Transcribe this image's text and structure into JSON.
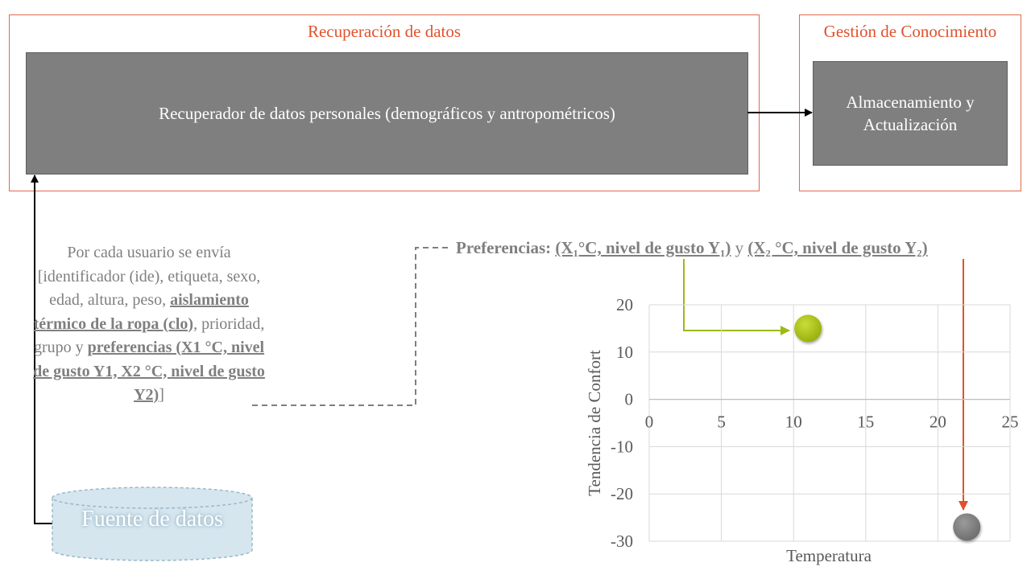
{
  "panels": {
    "retrieval": {
      "title": "Recuperación de datos",
      "box_label": "Recuperador de datos personales (demográficos y antropométricos)"
    },
    "knowledge": {
      "title": "Gestión de Conocimiento",
      "box_label_line1": "Almacenamiento y",
      "box_label_line2": "Actualización"
    }
  },
  "datasource": {
    "label": "Fuente de datos"
  },
  "sender": {
    "p1": "Por cada usuario se envía [identificador (ide), etiqueta, sexo, edad, altura, peso, ",
    "b1": "aislamiento térmico de la ropa (clo)",
    "p2": ", prioridad, grupo y ",
    "b2": "preferencias (X1 °C, nivel de gusto Y1, X2 °C, nivel de gusto Y2)",
    "p3": "]"
  },
  "preferences": {
    "label": "Preferencias: ",
    "pair1": "(X₁°C, nivel de gusto Y₁)",
    "connector": " y ",
    "pair2": "(X₂ °C, nivel de gusto Y₂)"
  },
  "colors": {
    "accent": "#e0522c",
    "green": "#9bbb14",
    "gray_box": "#7f7f7f",
    "db_fill": "#d6e6ef"
  },
  "chart_data": {
    "type": "scatter",
    "xlabel": "Temperatura",
    "ylabel": "Tendencia de Confort",
    "xlim": [
      0,
      25
    ],
    "ylim": [
      -30,
      20
    ],
    "x_ticks": [
      0,
      5,
      10,
      15,
      20,
      25
    ],
    "y_ticks": [
      20,
      10,
      0,
      -10,
      -20,
      -30
    ],
    "grid": true,
    "points": [
      {
        "x": 11,
        "y": 15,
        "color": "#a8c216"
      },
      {
        "x": 22,
        "y": -27,
        "color": "#808080"
      }
    ]
  }
}
